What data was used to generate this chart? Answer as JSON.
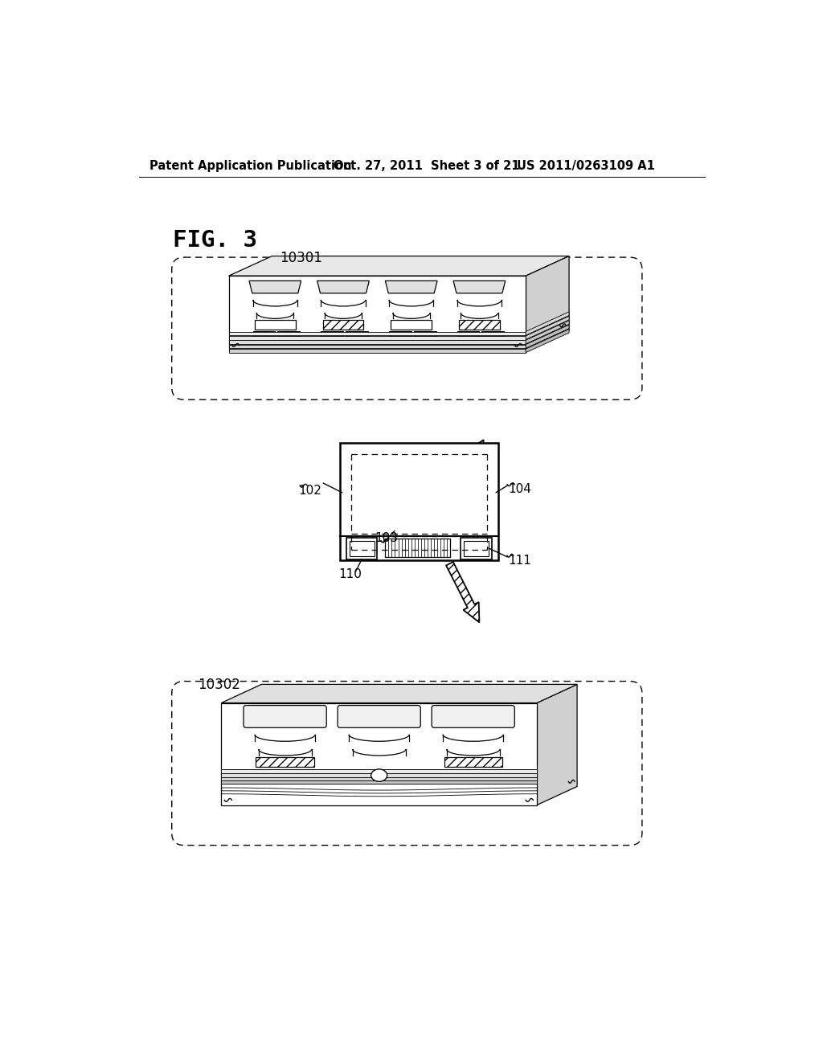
{
  "bg_color": "#ffffff",
  "header_left": "Patent Application Publication",
  "header_mid": "Oct. 27, 2011  Sheet 3 of 21",
  "header_right": "US 2011/0263109 A1",
  "fig_label": "FIG. 3",
  "label_10301": "10301",
  "label_10302": "10302",
  "label_102": "102",
  "label_103": "103",
  "label_104": "104",
  "label_110": "110",
  "label_111": "111"
}
